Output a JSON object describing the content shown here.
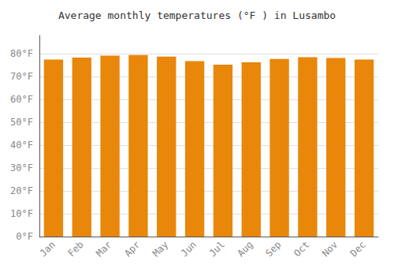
{
  "chart_data": {
    "type": "bar",
    "title": "Average monthly temperatures (°F ) in Lusambo",
    "categories": [
      "Jan",
      "Feb",
      "Mar",
      "Apr",
      "May",
      "Jun",
      "Jul",
      "Aug",
      "Sep",
      "Oct",
      "Nov",
      "Dec"
    ],
    "values": [
      77.5,
      78.3,
      79.2,
      79.5,
      78.8,
      76.8,
      75.2,
      76.3,
      77.7,
      78.5,
      78.2,
      77.5
    ],
    "color": "#E8870A",
    "ylim": [
      0,
      88
    ],
    "yticks": [
      {
        "value": 0,
        "label": "0°F"
      },
      {
        "value": 10,
        "label": "10°F"
      },
      {
        "value": 20,
        "label": "20°F"
      },
      {
        "value": 30,
        "label": "30°F"
      },
      {
        "value": 40,
        "label": "40°F"
      },
      {
        "value": 50,
        "label": "50°F"
      },
      {
        "value": 60,
        "label": "60°F"
      },
      {
        "value": 70,
        "label": "70°F"
      },
      {
        "value": 80,
        "label": "80°F"
      }
    ],
    "grid": true
  }
}
